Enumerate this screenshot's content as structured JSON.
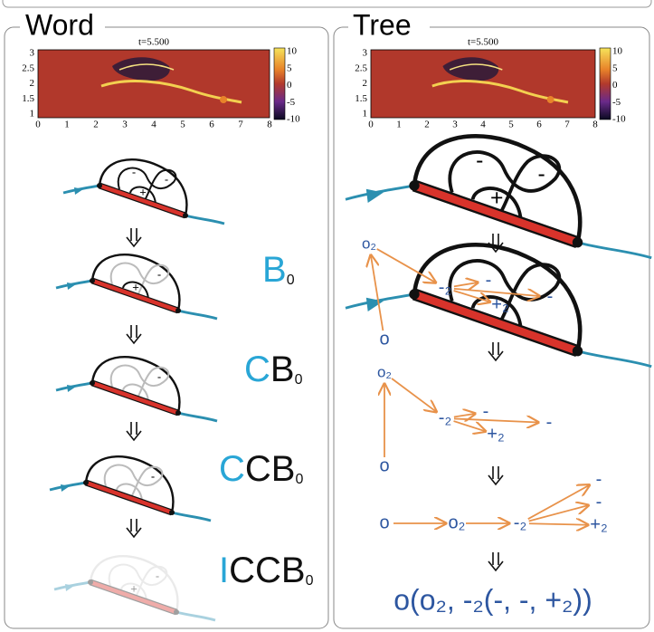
{
  "panels": [
    {
      "title": "Word",
      "plot": {
        "time_label": "t=5.500",
        "yticks": [
          "3",
          "2.5",
          "2",
          "1.5",
          "1"
        ],
        "xticks": [
          "0",
          "1",
          "2",
          "3",
          "4",
          "5",
          "6",
          "7",
          "8"
        ],
        "colorbar_ticks": [
          "10",
          "5",
          "0",
          "-5",
          "-10"
        ]
      },
      "steps": [
        {
          "signs": [
            "-",
            "+",
            "-"
          ]
        },
        {
          "signs": [
            "+",
            "-"
          ],
          "label": {
            "new": "B",
            "sub": "0"
          }
        },
        {
          "signs": [
            "-"
          ],
          "label": {
            "new": "C",
            "rest": "B",
            "sub": "0"
          }
        },
        {
          "signs": [
            "-"
          ],
          "label": {
            "new": "C",
            "rest": "CB",
            "sub": "0"
          }
        },
        {
          "signs": [
            "+",
            "-"
          ],
          "label": {
            "new": "I",
            "rest": "CCB",
            "sub": "0"
          }
        }
      ]
    },
    {
      "title": "Tree",
      "plot": {
        "time_label": "t=5.500",
        "yticks": [
          "3",
          "2.5",
          "2",
          "1.5",
          "1"
        ],
        "xticks": [
          "0",
          "1",
          "2",
          "3",
          "4",
          "5",
          "6",
          "7",
          "8"
        ],
        "colorbar_ticks": [
          "10",
          "5",
          "0",
          "-5",
          "-10"
        ]
      },
      "diagrams": [
        {
          "signs": [
            "-",
            "+",
            "-"
          ]
        },
        {
          "tree": [
            "o₂",
            "o",
            "-₂",
            "-",
            "+₂",
            "-"
          ]
        },
        {
          "tree": [
            "o₂",
            "o",
            "-₂",
            "-",
            "+₂",
            "-"
          ]
        },
        {
          "tree": [
            "o",
            "o₂",
            "-₂",
            "-",
            "-",
            "+₂"
          ]
        }
      ],
      "expression": "o(o₂, -₂(-, -, +₂))"
    }
  ]
}
